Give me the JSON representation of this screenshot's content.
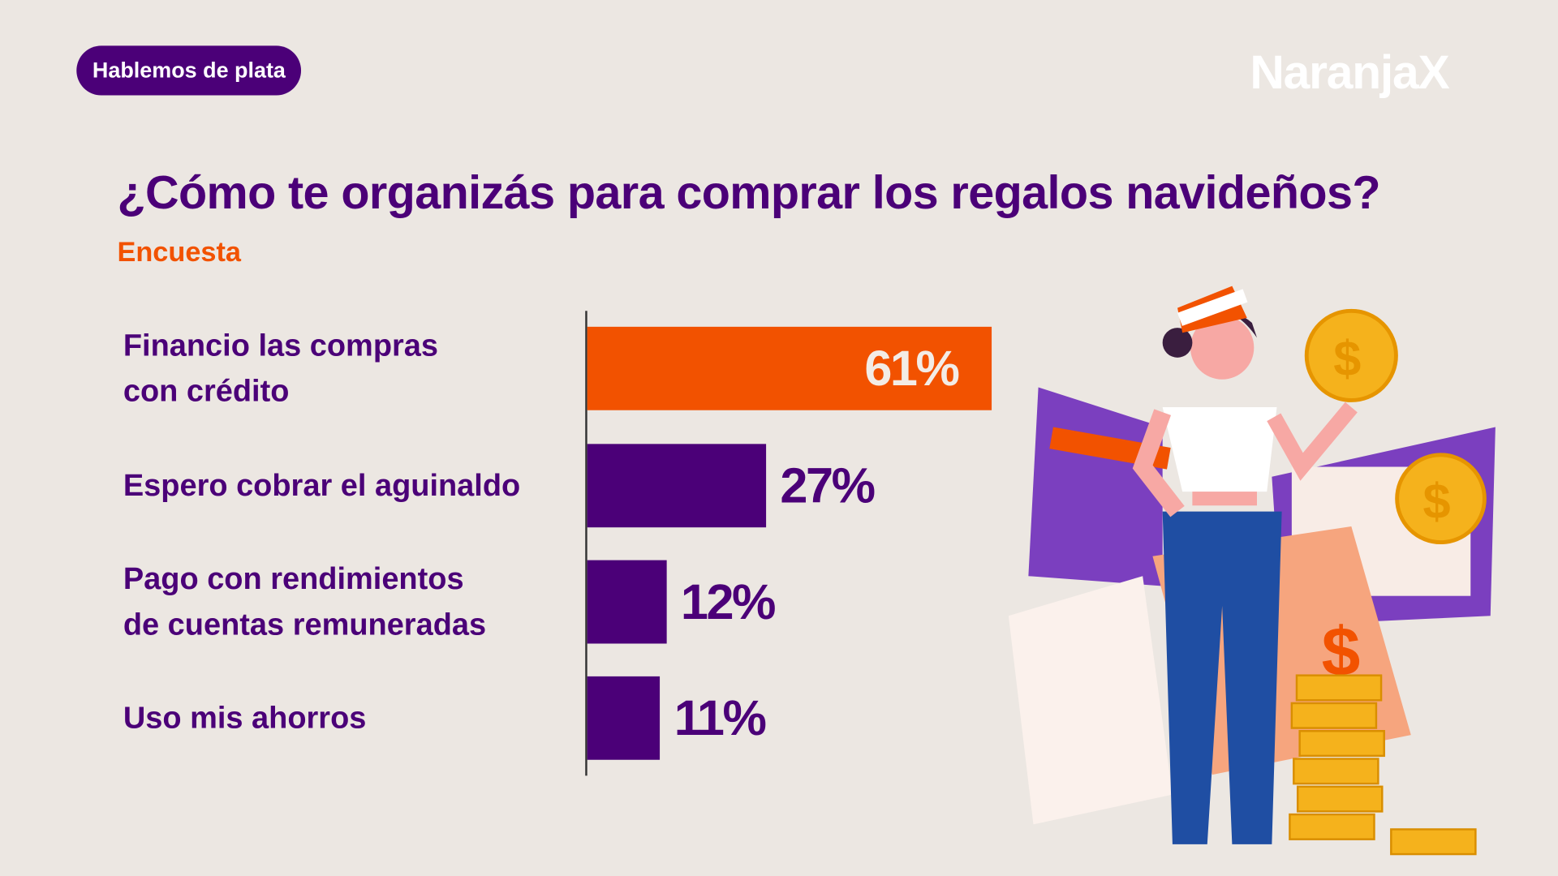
{
  "header": {
    "tag_label": "Hablemos de plata",
    "logo_text": "NaranjaX"
  },
  "chart_data": {
    "type": "bar",
    "orientation": "horizontal",
    "title": "¿Cómo te organizás para comprar los regalos navideños?",
    "subtitle": "Encuesta",
    "categories": [
      "Financio las compras con crédito",
      "Espero cobrar el aguinaldo",
      "Pago con rendimientos de cuentas remuneradas",
      "Uso mis ahorros"
    ],
    "category_lines": [
      [
        "Financio las compras",
        "con crédito"
      ],
      [
        "Espero cobrar el aguinaldo"
      ],
      [
        "Pago con rendimientos",
        "de cuentas remuneradas"
      ],
      [
        "Uso mis ahorros"
      ]
    ],
    "values": [
      61,
      27,
      12,
      11
    ],
    "labels": [
      "61%",
      "27%",
      "12%",
      "11%"
    ],
    "bar_colors": [
      "#f25200",
      "#4b0078",
      "#4b0078",
      "#4b0078"
    ],
    "grid": false
  },
  "colors": {
    "background": "#ece7e2",
    "purple": "#4b0078",
    "orange": "#f25200"
  }
}
